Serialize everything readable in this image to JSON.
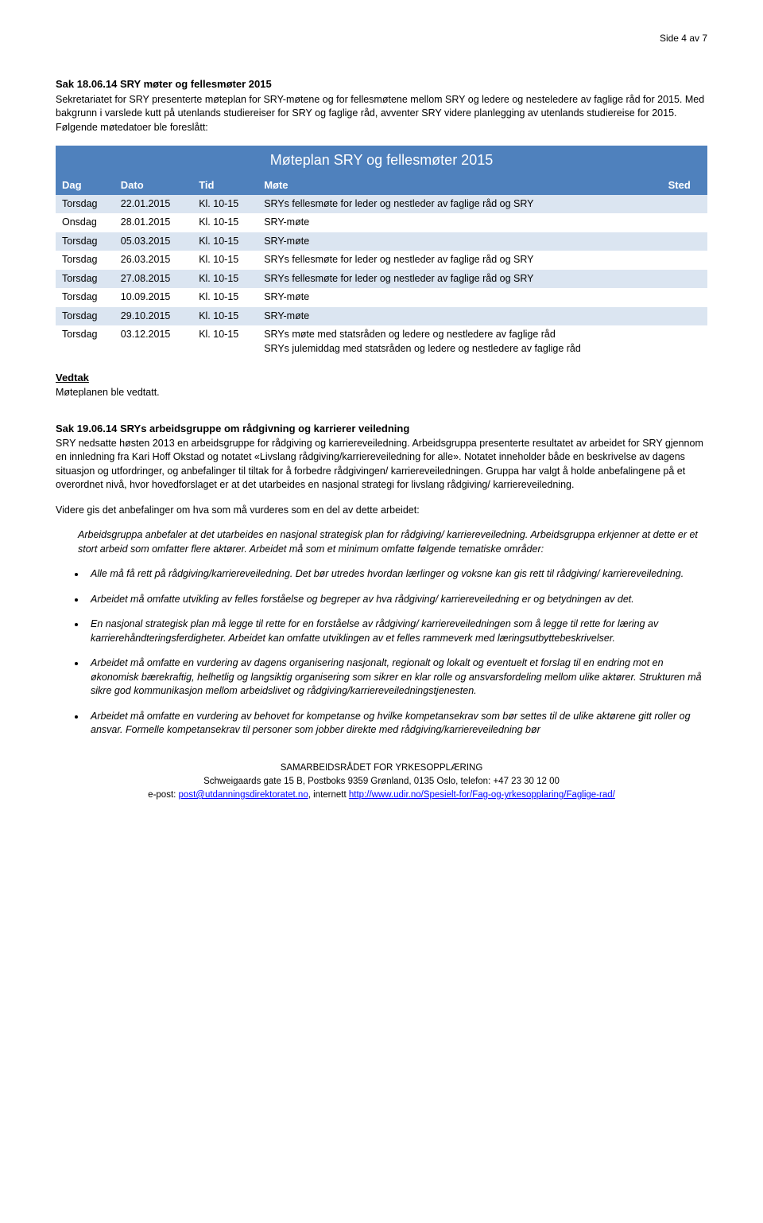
{
  "page_number": "Side 4 av 7",
  "sak18": {
    "title": "Sak 18.06.14 SRY møter og fellesmøter 2015",
    "p1": "Sekretariatet for SRY presenterte møteplan for SRY-møtene og for fellesmøtene mellom SRY og ledere og nesteledere av faglige råd for 2015.",
    "p2": "Med bakgrunn i varslede kutt på utenlands studiereiser for SRY og faglige råd, avventer SRY videre planlegging av utenlands studiereise for 2015. Følgende møtedatoer ble foreslått:"
  },
  "table": {
    "title": "Møteplan SRY og fellesmøter 2015",
    "headers": {
      "dag": "Dag",
      "dato": "Dato",
      "tid": "Tid",
      "mote": "Møte",
      "sted": "Sted"
    },
    "row_bg_odd": "#dbe5f1",
    "row_bg_even": "#ffffff",
    "header_bg": "#4f81bd",
    "header_color": "#ffffff",
    "rows": [
      {
        "dag": "Torsdag",
        "dato": "22.01.2015",
        "tid": "Kl. 10-15",
        "mote": "SRYs fellesmøte for leder og nestleder av faglige råd og SRY",
        "sted": ""
      },
      {
        "dag": "Onsdag",
        "dato": "28.01.2015",
        "tid": "Kl. 10-15",
        "mote": "SRY-møte",
        "sted": ""
      },
      {
        "dag": "Torsdag",
        "dato": "05.03.2015",
        "tid": "Kl. 10-15",
        "mote": "SRY-møte",
        "sted": ""
      },
      {
        "dag": "Torsdag",
        "dato": "26.03.2015",
        "tid": "Kl. 10-15",
        "mote": "SRYs fellesmøte for leder og nestleder av faglige råd og SRY",
        "sted": ""
      },
      {
        "dag": "Torsdag",
        "dato": "27.08.2015",
        "tid": "Kl. 10-15",
        "mote": "SRYs fellesmøte for leder og nestleder av faglige råd og SRY",
        "sted": ""
      },
      {
        "dag": "Torsdag",
        "dato": "10.09.2015",
        "tid": "Kl. 10-15",
        "mote": "SRY-møte",
        "sted": ""
      },
      {
        "dag": "Torsdag",
        "dato": "29.10.2015",
        "tid": "Kl. 10-15",
        "mote": "SRY-møte",
        "sted": ""
      },
      {
        "dag": "Torsdag",
        "dato": "03.12.2015",
        "tid": "Kl. 10-15",
        "mote": "SRYs møte med statsråden og ledere og nestledere av faglige råd\nSRYs julemiddag med statsråden og ledere og nestledere av faglige råd",
        "sted": ""
      }
    ]
  },
  "vedtak": {
    "heading": "Vedtak",
    "text": "Møteplanen ble vedtatt."
  },
  "sak19": {
    "title": "Sak 19.06.14 SRYs arbeidsgruppe om rådgivning og karrierer veiledning",
    "p1": "SRY nedsatte høsten 2013 en arbeidsgruppe for rådgiving og karriereveiledning. Arbeidsgruppa presenterte resultatet av arbeidet for SRY gjennom en innledning fra Kari Hoff Okstad og notatet «Livslang rådgiving/karriereveiledning for alle». Notatet inneholder både en beskrivelse av dagens situasjon og utfordringer, og anbefalinger til tiltak for å forbedre rådgivingen/ karriereveiledningen. Gruppa har valgt å holde anbefalingene på et overordnet nivå, hvor hovedforslaget er at det utarbeides en nasjonal strategi for livslang rådgiving/ karriereveiledning.",
    "p2": "Videre gis det anbefalinger om hva som må vurderes som en del av dette arbeidet:",
    "p3": "Arbeidsgruppa anbefaler at det utarbeides en nasjonal strategisk plan for rådgiving/ karriereveiledning. Arbeidsgruppa erkjenner at dette er et stort arbeid som omfatter flere aktører. Arbeidet må som et minimum omfatte følgende tematiske områder:",
    "bullets": [
      "Alle må få rett på rådgiving/karriereveiledning. Det bør utredes hvordan lærlinger og voksne kan gis rett til rådgiving/ karriereveiledning.",
      "Arbeidet må omfatte utvikling av felles forståelse og begreper av hva rådgiving/ karriereveiledning er og betydningen av det.",
      "En nasjonal strategisk plan må legge til rette for en forståelse av rådgiving/ karriereveiledningen som å legge til rette for læring av karrierehåndteringsferdigheter. Arbeidet kan omfatte utviklingen av et felles rammeverk med læringsutbyttebeskrivelser.",
      "Arbeidet må omfatte en vurdering av dagens organisering nasjonalt, regionalt og lokalt og eventuelt et forslag til en endring mot en økonomisk bærekraftig, helhetlig og langsiktig organisering som sikrer en klar rolle og ansvarsfordeling mellom ulike aktører. Strukturen må sikre god kommunikasjon mellom arbeidslivet og rådgiving/karriereveiledningstjenesten.",
      "Arbeidet må omfatte en vurdering av behovet for kompetanse og hvilke kompetansekrav som bør settes til de ulike aktørene gitt roller og ansvar. Formelle kompetansekrav til personer som jobber direkte med rådgiving/karriereveiledning bør"
    ]
  },
  "footer": {
    "line1": "SAMARBEIDSRÅDET FOR YRKESOPPLÆRING",
    "line2": "Schweigaards gate 15 B, Postboks 9359 Grønland, 0135 Oslo, telefon: +47 23 30 12 00",
    "line3_prefix": "e-post: ",
    "email": "post@utdanningsdirektoratet.no",
    "line3_mid": ", internett ",
    "url": "http://www.udir.no/Spesielt-for/Fag-og-yrkesopplaring/Faglige-rad/"
  }
}
